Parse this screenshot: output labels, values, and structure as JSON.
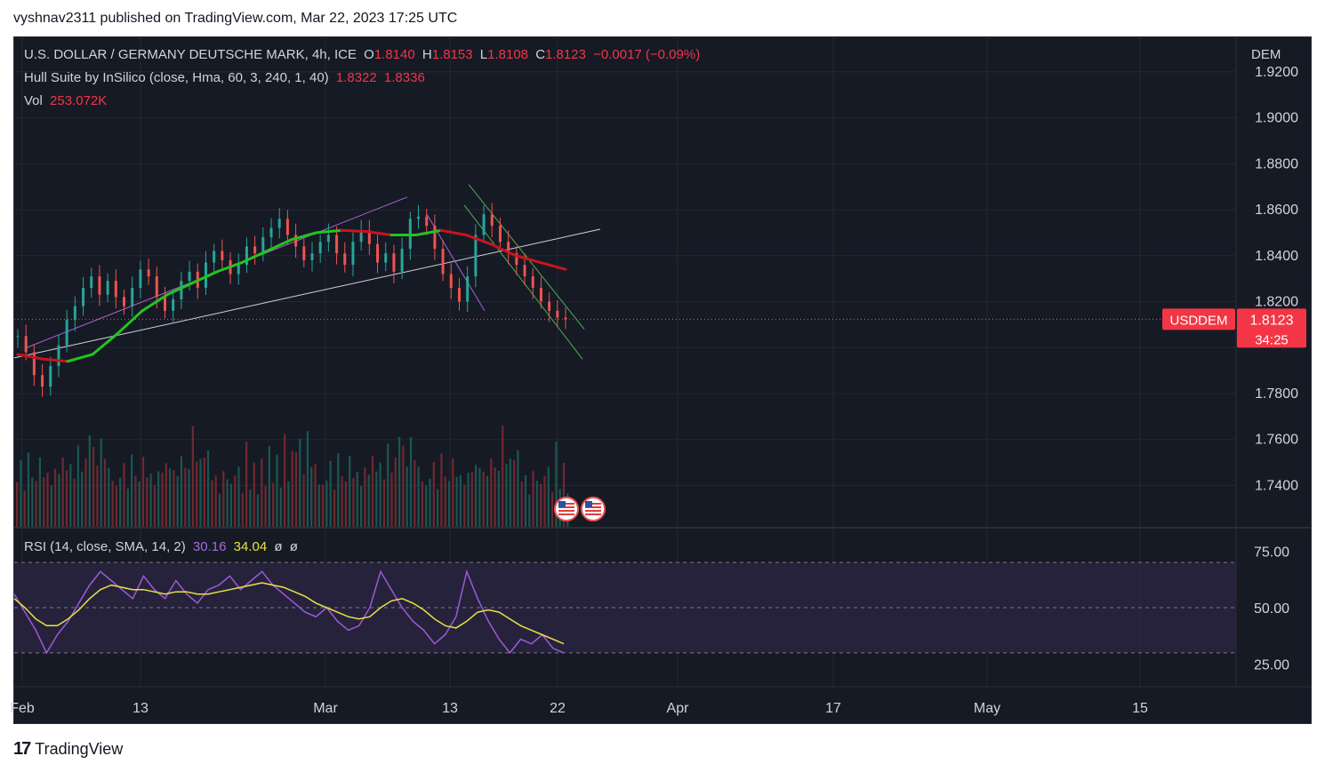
{
  "publisher_line": "vyshnav2311 published on TradingView.com, Mar 22, 2023 17:25 UTC",
  "footer": {
    "logo_glyph": "17",
    "brand": "TradingView"
  },
  "legend": {
    "symbol_title": "U.S. DOLLAR / GERMANY DEUTSCHE MARK, 4h, ICE",
    "o_label": "O",
    "o_value": "1.8140",
    "h_label": "H",
    "h_value": "1.8153",
    "l_label": "L",
    "l_value": "1.8108",
    "c_label": "C",
    "c_value": "1.8123",
    "change": "−0.0017 (−0.09%)",
    "hull_label": "Hull Suite by InSilico (close, Hma, 60, 3, 240, 1, 40)",
    "hull_v1": "1.8322",
    "hull_v2": "1.8336",
    "vol_label": "Vol",
    "vol_value": "253.072K",
    "rsi_label": "RSI (14, close, SMA, 14, 2)",
    "rsi_value": "30.16",
    "rsi_sma": "34.04",
    "rsi_extra1": "ø",
    "rsi_extra2": "ø"
  },
  "chart_data": [
    {
      "type": "candlestick",
      "currency_label": "DEM",
      "y_ticks": [
        "1.9200",
        "1.9000",
        "1.8800",
        "1.8600",
        "1.8400",
        "1.8200",
        "1.7800",
        "1.7600",
        "1.7400"
      ],
      "ylim": [
        1.722,
        1.935
      ],
      "x_ticks": [
        "Feb",
        "13",
        "Mar",
        "13",
        "22",
        "Apr",
        "17",
        "May",
        "15"
      ],
      "last_price": {
        "symbol_tag": "USDDEM",
        "price": "1.8123",
        "countdown": "34:25",
        "value": 1.8123
      },
      "close_path": [
        1.805,
        1.798,
        1.788,
        1.783,
        1.792,
        1.801,
        1.812,
        1.818,
        1.826,
        1.831,
        1.823,
        1.829,
        1.822,
        1.818,
        1.826,
        1.834,
        1.831,
        1.822,
        1.816,
        1.821,
        1.829,
        1.833,
        1.826,
        1.837,
        1.842,
        1.838,
        1.832,
        1.836,
        1.844,
        1.841,
        1.848,
        1.852,
        1.856,
        1.849,
        1.844,
        1.838,
        1.841,
        1.846,
        1.849,
        1.841,
        1.836,
        1.846,
        1.851,
        1.845,
        1.837,
        1.841,
        1.833,
        1.843,
        1.856,
        1.857,
        1.853,
        1.843,
        1.832,
        1.826,
        1.82,
        1.831,
        1.849,
        1.858,
        1.853,
        1.846,
        1.841,
        1.836,
        1.831,
        1.826,
        1.82,
        1.816,
        1.813,
        1.8123
      ],
      "hull_ma": [
        1.797,
        1.795,
        1.794,
        1.797,
        1.806,
        1.816,
        1.823,
        1.828,
        1.833,
        1.837,
        1.842,
        1.847,
        1.85,
        1.851,
        1.8505,
        1.849,
        1.849,
        1.851,
        1.849,
        1.845,
        1.84,
        1.837,
        1.834
      ],
      "volume_spikes": [
        0.45,
        0.6,
        0.3,
        0.7,
        0.5,
        0.35,
        0.8,
        0.4,
        0.55,
        0.3,
        0.6,
        0.45,
        0.75,
        0.5,
        0.65,
        0.4,
        0.9,
        0.5,
        0.7,
        1.0,
        0.85,
        0.6,
        0.95,
        0.7,
        0.55,
        0.4,
        0.3
      ],
      "trend_lines": [
        "rising support",
        "descending channel"
      ]
    },
    {
      "type": "line",
      "name": "RSI",
      "y_ticks": [
        "75.00",
        "50.00",
        "25.00"
      ],
      "ylim": [
        15,
        85
      ],
      "band": [
        30,
        70
      ],
      "rsi": [
        56,
        48,
        40,
        30,
        38,
        44,
        52,
        60,
        66,
        62,
        58,
        54,
        64,
        58,
        54,
        62,
        56,
        52,
        58,
        60,
        64,
        58,
        62,
        66,
        60,
        56,
        52,
        48,
        46,
        50,
        44,
        40,
        42,
        50,
        66,
        58,
        50,
        44,
        40,
        34,
        38,
        46,
        66,
        54,
        44,
        36,
        30,
        36,
        34,
        38,
        32,
        30
      ],
      "rsi_sma": [
        54,
        50,
        45,
        42,
        42,
        45,
        49,
        54,
        58,
        60,
        59,
        58,
        58,
        57,
        56,
        57,
        57,
        56,
        56,
        57,
        58,
        59,
        60,
        61,
        60,
        59,
        57,
        55,
        52,
        50,
        48,
        46,
        45,
        46,
        50,
        53,
        54,
        52,
        49,
        45,
        42,
        41,
        44,
        48,
        49,
        48,
        45,
        42,
        40,
        38,
        36,
        34
      ]
    }
  ]
}
